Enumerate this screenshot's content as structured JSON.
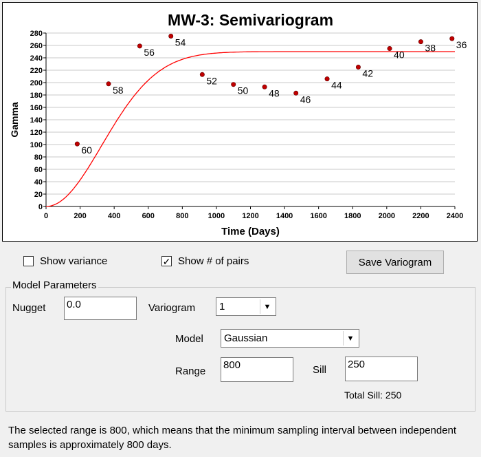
{
  "chart_data": {
    "type": "scatter",
    "title": "MW-3: Semivariogram",
    "xlabel": "Time (Days)",
    "ylabel": "Gamma",
    "xlim": [
      0,
      2400
    ],
    "ylim": [
      0,
      280
    ],
    "xticks": [
      0,
      200,
      400,
      600,
      800,
      1000,
      1200,
      1400,
      1600,
      1800,
      2000,
      2200,
      2400
    ],
    "yticks": [
      0,
      20,
      40,
      60,
      80,
      100,
      120,
      140,
      160,
      180,
      200,
      220,
      240,
      260,
      280
    ],
    "grid": "horizontal",
    "points": [
      {
        "x": 183,
        "y": 101,
        "pairs": "60"
      },
      {
        "x": 367,
        "y": 198,
        "pairs": "58"
      },
      {
        "x": 550,
        "y": 259,
        "pairs": "56"
      },
      {
        "x": 733,
        "y": 275,
        "pairs": "54"
      },
      {
        "x": 917,
        "y": 213,
        "pairs": "52"
      },
      {
        "x": 1100,
        "y": 197,
        "pairs": "50"
      },
      {
        "x": 1283,
        "y": 193,
        "pairs": "48"
      },
      {
        "x": 1467,
        "y": 183,
        "pairs": "46"
      },
      {
        "x": 1650,
        "y": 206,
        "pairs": "44"
      },
      {
        "x": 1833,
        "y": 225,
        "pairs": "42"
      },
      {
        "x": 2017,
        "y": 255,
        "pairs": "40"
      },
      {
        "x": 2200,
        "y": 266,
        "pairs": "38"
      },
      {
        "x": 2383,
        "y": 271,
        "pairs": "36"
      }
    ],
    "model": {
      "type": "gaussian",
      "nugget": 0,
      "sill": 250,
      "range": 800
    },
    "point_color": "#c00000",
    "model_color": "#ff0000"
  },
  "controls": {
    "show_variance_label": "Show variance",
    "show_variance_checked": false,
    "show_pairs_label": "Show # of pairs",
    "show_pairs_checked": true,
    "save_button": "Save Variogram",
    "check_mark": "✓"
  },
  "model_params": {
    "title": "Model Parameters",
    "nugget_label": "Nugget",
    "nugget_value": "0.0",
    "variogram_label": "Variogram",
    "variogram_value": "1",
    "model_label": "Model",
    "model_value": "Gaussian",
    "range_label": "Range",
    "range_value": "800",
    "sill_label": "Sill",
    "sill_value": "250",
    "total_sill": "Total Sill: 250"
  },
  "note": "The selected range is 800, which means that the minimum sampling interval between independent samples is approximately 800 days."
}
